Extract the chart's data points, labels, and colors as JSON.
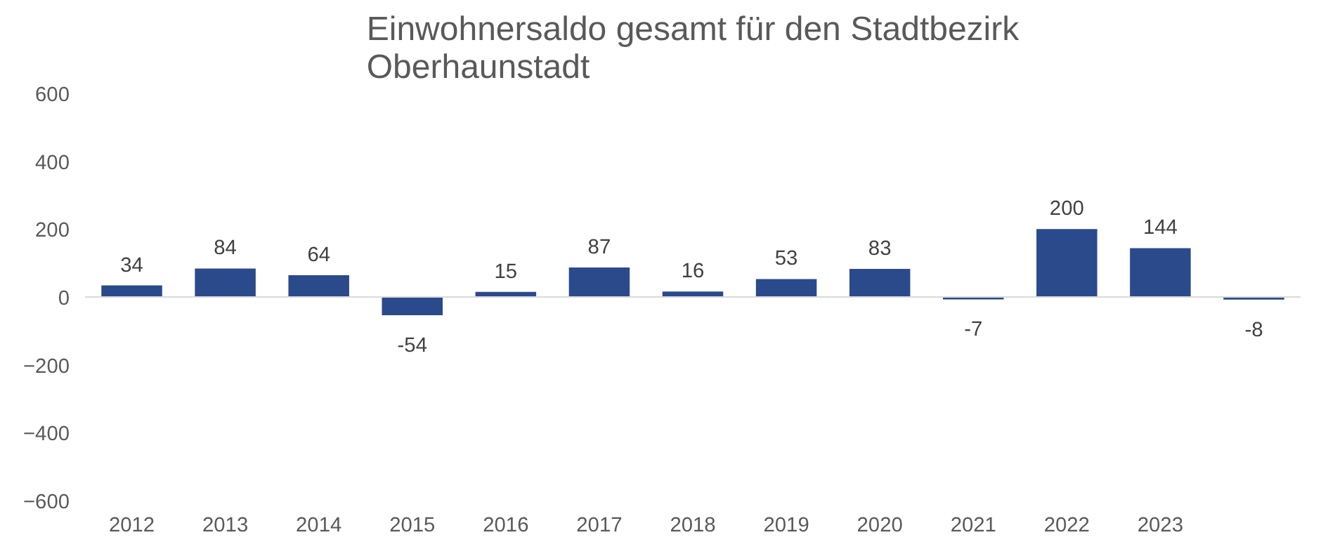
{
  "chart_data": {
    "type": "bar",
    "title": "Einwohnersaldo gesamt für den Stadtbezirk\nOberhaunstadt",
    "categories": [
      "2012",
      "2013",
      "2014",
      "2015",
      "2016",
      "2017",
      "2018",
      "2019",
      "2020",
      "2021",
      "2022",
      "2023",
      null
    ],
    "values": [
      34,
      84,
      64,
      -54,
      15,
      87,
      16,
      53,
      83,
      -7,
      200,
      144,
      -8
    ],
    "color": "#2a4a8c",
    "ylim": [
      -600,
      600
    ],
    "yticks": [
      -600,
      -400,
      -200,
      0,
      200,
      400,
      600
    ],
    "data_labels": true
  }
}
